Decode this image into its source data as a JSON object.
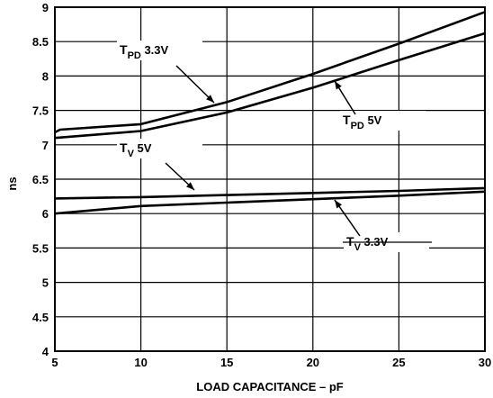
{
  "chart_data": {
    "type": "line",
    "xlabel": "LOAD CAPACITANCE – pF",
    "ylabel": "ns",
    "xlim": [
      5,
      30
    ],
    "ylim": [
      4,
      9
    ],
    "x_ticks": [
      "5",
      "10",
      "15",
      "20",
      "25",
      "30"
    ],
    "y_ticks": [
      "4",
      "4.5",
      "5",
      "5.5",
      "6",
      "6.5",
      "7",
      "7.5",
      "8",
      "8.5",
      "9"
    ],
    "grid": true,
    "series": [
      {
        "name": "T_PD 3.3V",
        "label_main": "T",
        "label_sub": "PD",
        "label_tail": " 3.3V",
        "points": [
          [
            5,
            7.18
          ],
          [
            5.3,
            7.22
          ],
          [
            10,
            7.3
          ],
          [
            15,
            7.62
          ],
          [
            20,
            8.03
          ],
          [
            25,
            8.47
          ],
          [
            30,
            8.93
          ]
        ]
      },
      {
        "name": "T_PD 5V",
        "label_main": "T",
        "label_sub": "PD",
        "label_tail": " 5V",
        "points": [
          [
            5,
            7.1
          ],
          [
            10,
            7.2
          ],
          [
            15,
            7.47
          ],
          [
            20,
            7.83
          ],
          [
            25,
            8.23
          ],
          [
            30,
            8.62
          ]
        ]
      },
      {
        "name": "T_V 5V",
        "label_main": "T",
        "label_sub": "V",
        "label_tail": " 5V",
        "points": [
          [
            5,
            6.22
          ],
          [
            10,
            6.24
          ],
          [
            15,
            6.27
          ],
          [
            20,
            6.3
          ],
          [
            25,
            6.33
          ],
          [
            30,
            6.37
          ]
        ]
      },
      {
        "name": "T_V 3.3V",
        "label_main": "T",
        "label_sub": "V",
        "label_tail": " 3.3V",
        "points": [
          [
            5,
            6.0
          ],
          [
            10,
            6.11
          ],
          [
            15,
            6.16
          ],
          [
            20,
            6.21
          ],
          [
            25,
            6.26
          ],
          [
            30,
            6.32
          ]
        ]
      }
    ]
  }
}
